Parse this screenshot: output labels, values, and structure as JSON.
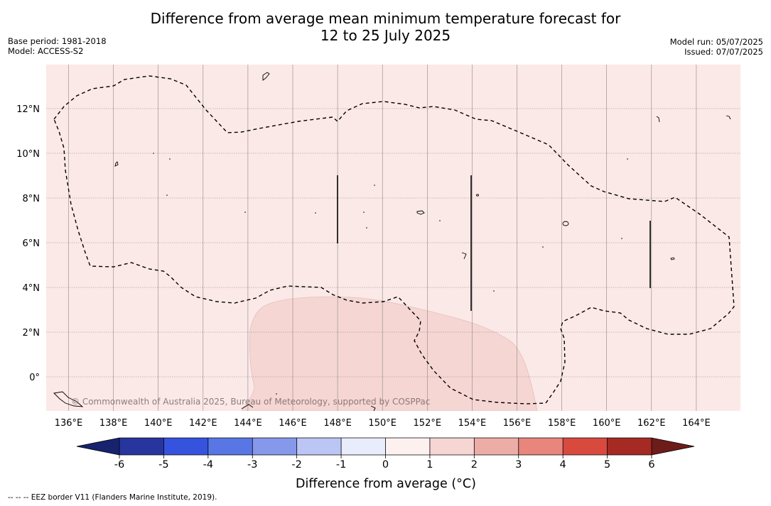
{
  "title_line1": "Difference from average mean minimum temperature forecast for",
  "title_line2": "12 to 25 July 2025",
  "meta_left": {
    "base_period": "Base period: 1981-2018",
    "model": "Model: ACCESS-S2"
  },
  "meta_right": {
    "model_run": "Model run: 05/07/2025",
    "issued": "Issued: 07/07/2025"
  },
  "map": {
    "lon_ticks": [
      "136°E",
      "138°E",
      "140°E",
      "142°E",
      "144°E",
      "146°E",
      "148°E",
      "150°E",
      "152°E",
      "154°E",
      "156°E",
      "158°E",
      "160°E",
      "162°E",
      "164°E"
    ],
    "lat_ticks": [
      "12°N",
      "10°N",
      "8°N",
      "6°N",
      "4°N",
      "2°N",
      "0°"
    ],
    "background_color": "#fbe9e7",
    "warm_region_color": "#f5d6d3",
    "watermark": "© Commonwealth of Australia 2025, Bureau of Meteorology, supported by COSPPac"
  },
  "colorbar": {
    "labels": [
      "-6",
      "-5",
      "-4",
      "-3",
      "-2",
      "-1",
      "0",
      "1",
      "2",
      "3",
      "4",
      "5",
      "6"
    ],
    "colors": [
      "#28359e",
      "#3653de",
      "#5877e4",
      "#8598ea",
      "#bcc6f4",
      "#e9ecfb",
      "#fdf1f0",
      "#f5d6d3",
      "#ecada7",
      "#e8857d",
      "#d84a3e",
      "#a52a24"
    ],
    "under_color": "#17236e",
    "over_color": "#6e1c1a",
    "label": "Difference from average (°C)"
  },
  "footnote": "-- -- -- EEZ border V11 (Flanders Marine Institute, 2019)."
}
